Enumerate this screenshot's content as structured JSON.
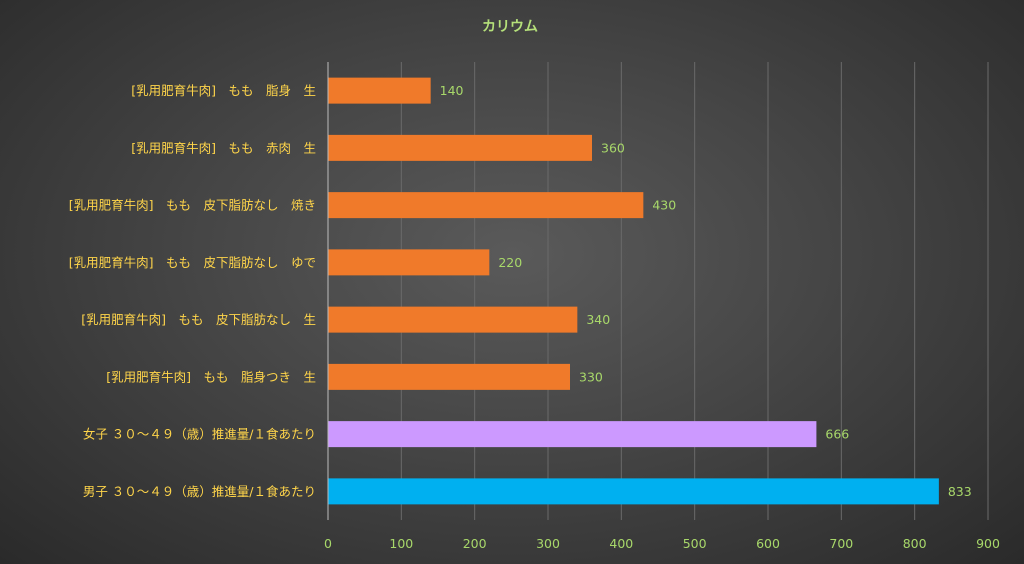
{
  "chart_data": {
    "type": "bar",
    "orientation": "horizontal",
    "title": "カリウム",
    "categories": [
      "[乳用肥育牛肉]　もも　脂身　生",
      "[乳用肥育牛肉]　もも　赤肉　生",
      "[乳用肥育牛肉]　もも　皮下脂肪なし　焼き",
      "[乳用肥育牛肉]　もも　皮下脂肪なし　ゆで",
      "[乳用肥育牛肉]　もも　皮下脂肪なし　生",
      "[乳用肥育牛肉]　もも　脂身つき　生",
      "女子 ３０～４９（歳）推進量/１食あたり",
      "男子 ３０～４９（歳）推進量/１食あたり"
    ],
    "values": [
      140,
      360,
      430,
      220,
      340,
      330,
      666,
      833
    ],
    "bar_colors": [
      "#f07a2a",
      "#f07a2a",
      "#f07a2a",
      "#f07a2a",
      "#f07a2a",
      "#f07a2a",
      "#cc99ff",
      "#00b0f0"
    ],
    "xlim": [
      0,
      900
    ],
    "xticks": [
      0,
      100,
      200,
      300,
      400,
      500,
      600,
      700,
      800,
      900
    ],
    "xlabel": "",
    "ylabel": "",
    "grid": true,
    "legend": "none"
  },
  "colors": {
    "title": "#b5e07a",
    "category_label": "#ffd54a",
    "value_label": "#a8d86a",
    "tick_label": "#a8d86a",
    "gridline": "#6a6a6a",
    "axis": "#bdbdbd"
  }
}
